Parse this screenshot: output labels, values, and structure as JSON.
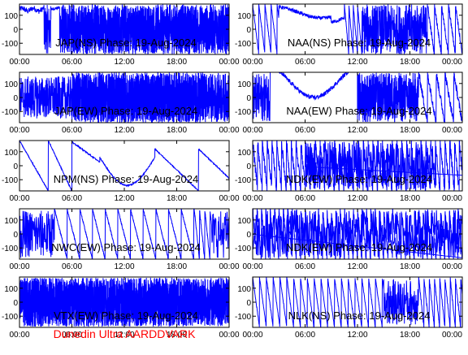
{
  "colors": {
    "trace": "#0000ff",
    "axes": "#000000",
    "background": "#ffffff",
    "credit": "#ff0000"
  },
  "credit_text": "Dunedin Ultra AARDDVARK",
  "chart_data": [
    {
      "type": "line",
      "title": "JAP(NS) Phase: 19-Aug-2024",
      "x_ticks": [
        "00:00",
        "06:00",
        "12:00",
        "18:00",
        "00:00"
      ],
      "y_ticks": [
        "100",
        "0",
        "-100"
      ],
      "ylim": [
        -180,
        180
      ],
      "xlim_hours": [
        0,
        24
      ],
      "pattern": "jap_ns"
    },
    {
      "type": "line",
      "title": "NAA(NS) Phase: 19-Aug-2024",
      "x_ticks": [
        "00:00",
        "06:00",
        "12:00",
        "18:00",
        "00:00"
      ],
      "y_ticks": [
        "100",
        "0",
        "-100"
      ],
      "ylim": [
        -180,
        180
      ],
      "xlim_hours": [
        0,
        24
      ],
      "pattern": "naa_ns"
    },
    {
      "type": "line",
      "title": "JAP(EW) Phase: 19-Aug-2024",
      "x_ticks": [
        "00:00",
        "06:00",
        "12:00",
        "18:00",
        "00:00"
      ],
      "y_ticks": [
        "100",
        "0",
        "-100"
      ],
      "ylim": [
        -180,
        180
      ],
      "xlim_hours": [
        0,
        24
      ],
      "pattern": "jap_ew"
    },
    {
      "type": "line",
      "title": "NAA(EW) Phase: 19-Aug-2024",
      "x_ticks": [
        "00:00",
        "06:00",
        "12:00",
        "18:00",
        "00:00"
      ],
      "y_ticks": [
        "100",
        "0",
        "-100"
      ],
      "ylim": [
        -180,
        180
      ],
      "xlim_hours": [
        0,
        24
      ],
      "pattern": "naa_ew"
    },
    {
      "type": "line",
      "title": "NPM(NS) Phase: 19-Aug-2024",
      "x_ticks": [
        "00:00",
        "06:00",
        "12:00",
        "18:00",
        "00:00"
      ],
      "y_ticks": [
        "100",
        "0",
        "-100"
      ],
      "ylim": [
        -180,
        180
      ],
      "xlim_hours": [
        0,
        24
      ],
      "pattern": "npm_ns"
    },
    {
      "type": "line",
      "title": "NDK(EW) Phase: 19-Aug-2024",
      "x_ticks": [
        "00:00",
        "06:00",
        "12:00",
        "18:00",
        "00:00"
      ],
      "y_ticks": [
        "100",
        "0",
        "-100"
      ],
      "ylim": [
        -180,
        180
      ],
      "xlim_hours": [
        0,
        24
      ],
      "pattern": "ndk_ew1"
    },
    {
      "type": "line",
      "title": "NWC(EW) Phase: 19-Aug-2024",
      "x_ticks": [
        "00:00",
        "06:00",
        "12:00",
        "18:00",
        "00:00"
      ],
      "y_ticks": [
        "100",
        "0",
        "-100"
      ],
      "ylim": [
        -180,
        180
      ],
      "xlim_hours": [
        0,
        24
      ],
      "pattern": "nwc_ew"
    },
    {
      "type": "line",
      "title": "NDK(EW) Phase: 19-Aug-2024",
      "x_ticks": [
        "00:00",
        "06:00",
        "12:00",
        "18:00",
        "00:00"
      ],
      "y_ticks": [
        "100",
        "0",
        "-100"
      ],
      "ylim": [
        -180,
        180
      ],
      "xlim_hours": [
        0,
        24
      ],
      "pattern": "ndk_ew2"
    },
    {
      "type": "line",
      "title": "VTX(EW) Phase: 19-Aug-2024",
      "x_ticks": [
        "00:00",
        "06:00",
        "12:00",
        "18:00",
        "00:00"
      ],
      "y_ticks": [
        "100",
        "0",
        "-100"
      ],
      "ylim": [
        -180,
        180
      ],
      "xlim_hours": [
        0,
        24
      ],
      "pattern": "vtx_ew"
    },
    {
      "type": "line",
      "title": "NLK(NS) Phase: 19-Aug-2024",
      "x_ticks": [
        "00:00",
        "06:00",
        "12:00",
        "18:00",
        "00:00"
      ],
      "y_ticks": [
        "100",
        "0",
        "-100"
      ],
      "ylim": [
        -180,
        180
      ],
      "xlim_hours": [
        0,
        24
      ],
      "pattern": "nlk_ns"
    }
  ]
}
